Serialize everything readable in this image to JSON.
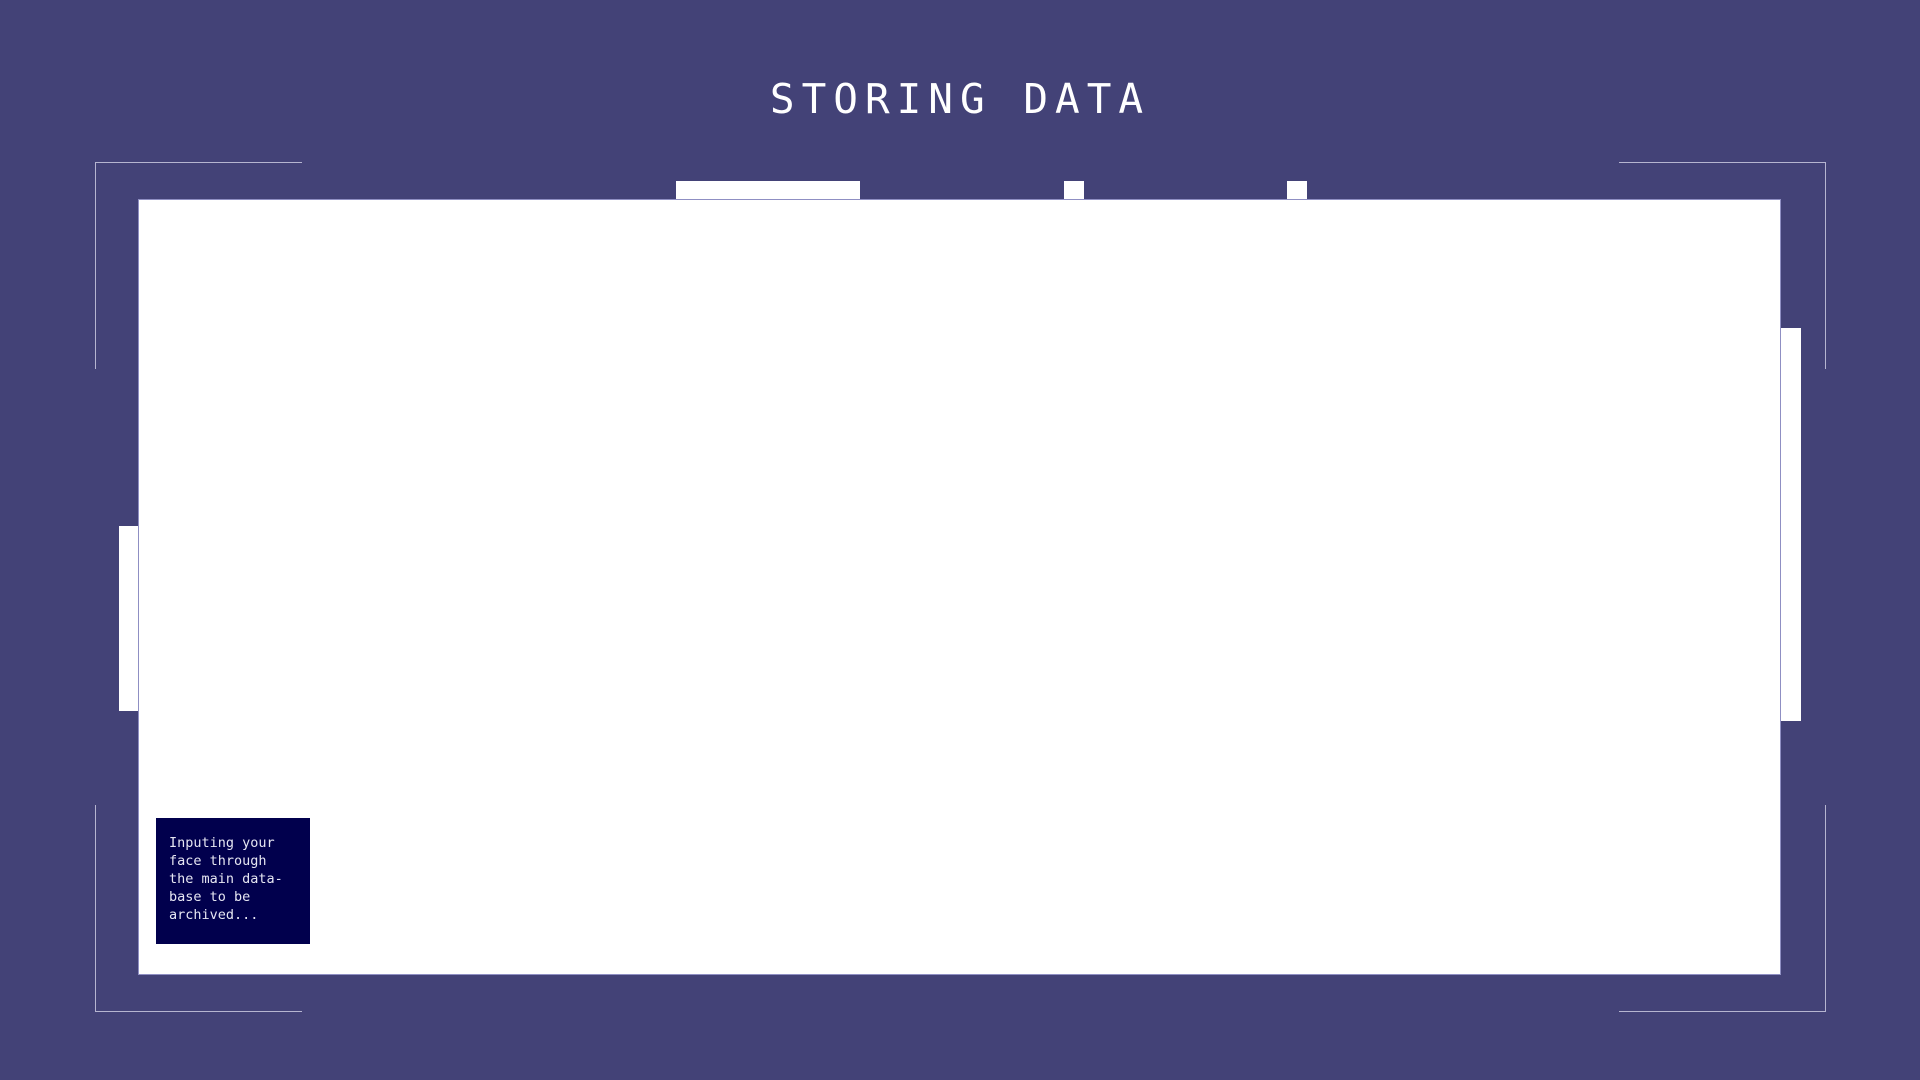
{
  "title": "STORING DATA",
  "status": {
    "message": "Inputing your\nface through\nthe main data-\nbase to be\narchived..."
  },
  "colors": {
    "background": "#434277",
    "panel": "#ffffff",
    "frame_lines": "#b6b5d0",
    "status_box": "#01004d",
    "title_text": "#ffffff"
  }
}
